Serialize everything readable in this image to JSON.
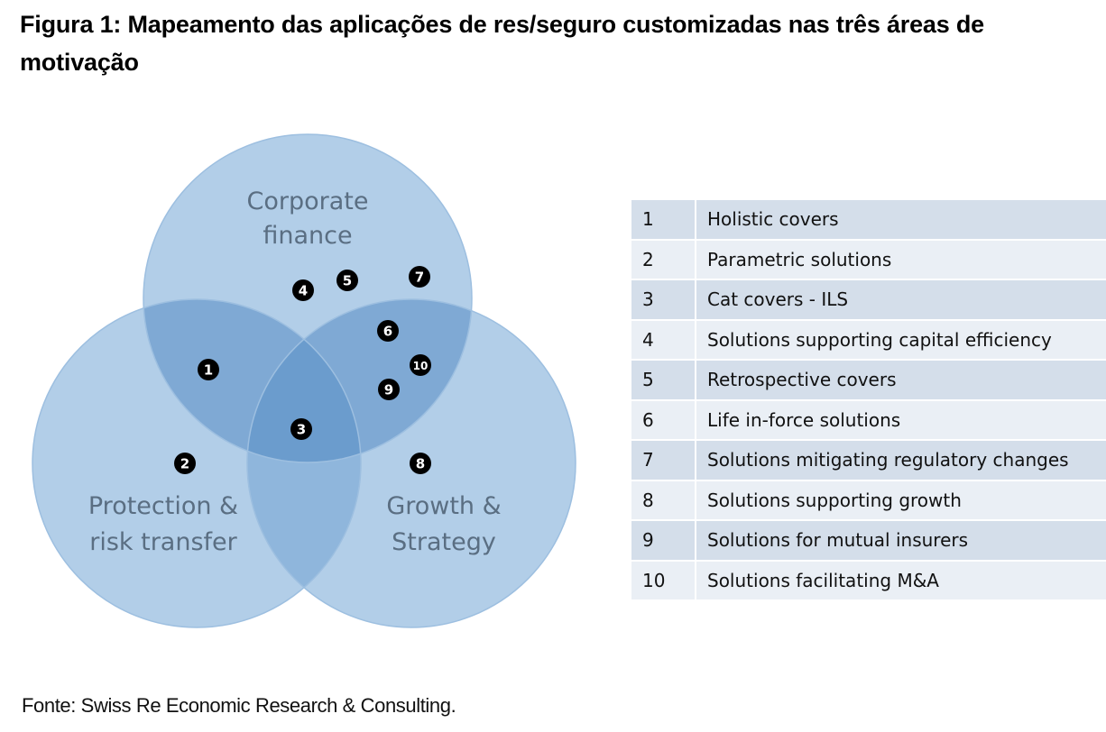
{
  "title": "Figura 1: Mapeamento das aplicações de res/seguro customizadas nas três áreas de motivação",
  "venn": {
    "circles": [
      {
        "label_lines": [
          "Corporate",
          "finance"
        ],
        "color": "#a9c6e4"
      },
      {
        "label_lines": [
          "Protection &",
          "risk transfer"
        ],
        "color": "#a9c6e4"
      },
      {
        "label_lines": [
          "Growth &",
          "Strategy"
        ],
        "color": "#a9c6e4"
      }
    ],
    "markers": [
      "1",
      "2",
      "3",
      "4",
      "5",
      "6",
      "7",
      "8",
      "9",
      "10"
    ]
  },
  "legend": {
    "items": [
      {
        "num": "1",
        "text": "Holistic covers"
      },
      {
        "num": "2",
        "text": "Parametric solutions"
      },
      {
        "num": "3",
        "text": "Cat covers - ILS"
      },
      {
        "num": "4",
        "text": "Solutions supporting capital efficiency"
      },
      {
        "num": "5",
        "text": "Retrospective covers"
      },
      {
        "num": "6",
        "text": "Life in-force solutions"
      },
      {
        "num": "7",
        "text": "Solutions mitigating regulatory changes"
      },
      {
        "num": "8",
        "text": "Solutions supporting growth"
      },
      {
        "num": "9",
        "text": "Solutions for mutual insurers"
      },
      {
        "num": "10",
        "text": "Solutions facilitating M&A"
      }
    ]
  },
  "source": "Fonte: Swiss Re Economic Research & Consulting."
}
